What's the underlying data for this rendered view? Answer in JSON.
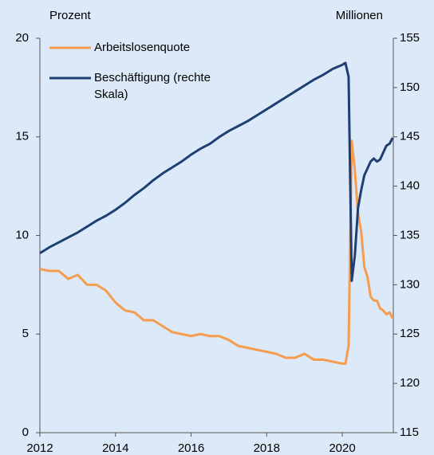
{
  "chart_data": {
    "type": "line",
    "ylabel": "Prozent",
    "y2label": "Millionen",
    "x": [
      2012,
      2012.25,
      2012.5,
      2012.75,
      2013,
      2013.25,
      2013.5,
      2013.75,
      2014,
      2014.25,
      2014.5,
      2014.75,
      2015,
      2015.25,
      2015.5,
      2015.75,
      2016,
      2016.25,
      2016.5,
      2016.75,
      2017,
      2017.25,
      2017.5,
      2017.75,
      2018,
      2018.25,
      2018.5,
      2018.75,
      2019,
      2019.25,
      2019.5,
      2019.75,
      2020,
      2020.083,
      2020.167,
      2020.25,
      2020.333,
      2020.417,
      2020.5,
      2020.583,
      2020.667,
      2020.75,
      2020.833,
      2020.917,
      2021,
      2021.083,
      2021.167,
      2021.25,
      2021.333
    ],
    "series": [
      {
        "name": "Arbeitslosenquote",
        "color": "#f59d4f",
        "axis": "y",
        "values": [
          8.3,
          8.2,
          8.2,
          7.8,
          8.0,
          7.5,
          7.5,
          7.2,
          6.6,
          6.2,
          6.1,
          5.7,
          5.7,
          5.4,
          5.1,
          5.0,
          4.9,
          5.0,
          4.9,
          4.9,
          4.7,
          4.4,
          4.3,
          4.2,
          4.1,
          4.0,
          3.8,
          3.8,
          4.0,
          3.7,
          3.7,
          3.6,
          3.5,
          3.5,
          4.4,
          14.8,
          13.3,
          11.1,
          10.2,
          8.4,
          7.9,
          6.9,
          6.7,
          6.7,
          6.3,
          6.2,
          6.0,
          6.1,
          5.8
        ]
      },
      {
        "name": "Beschäftigung (rechte Skala)",
        "color": "#1f3f73",
        "axis": "y2",
        "values": [
          133.2,
          133.8,
          134.3,
          134.8,
          135.3,
          135.9,
          136.5,
          137.0,
          137.6,
          138.3,
          139.1,
          139.8,
          140.6,
          141.3,
          141.9,
          142.5,
          143.2,
          143.8,
          144.3,
          145.0,
          145.6,
          146.1,
          146.6,
          147.2,
          147.8,
          148.4,
          149.0,
          149.6,
          150.2,
          150.8,
          151.3,
          151.9,
          152.3,
          152.5,
          151.1,
          130.4,
          133.0,
          137.8,
          139.6,
          141.1,
          141.8,
          142.5,
          142.8,
          142.5,
          142.7,
          143.4,
          144.1,
          144.3,
          144.9
        ]
      }
    ],
    "xlim": [
      2012,
      2021.35
    ],
    "xticks": [
      2012,
      2014,
      2016,
      2018,
      2020
    ],
    "ylim": [
      0,
      20
    ],
    "yticks": [
      0,
      5,
      10,
      15,
      20
    ],
    "y2lim": [
      115,
      155
    ],
    "y2ticks": [
      115,
      120,
      125,
      130,
      135,
      140,
      145,
      150,
      155
    ],
    "legend": "upper left"
  }
}
